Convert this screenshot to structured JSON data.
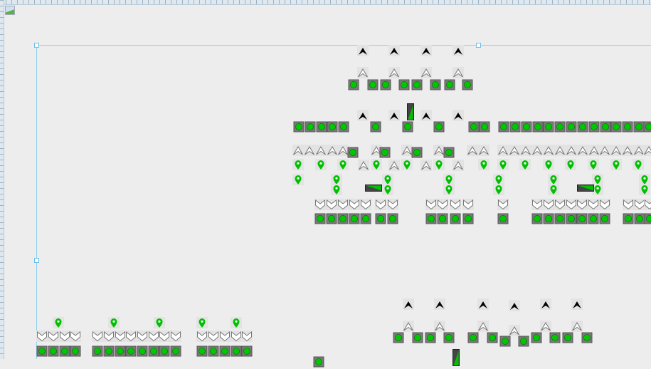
{
  "canvas": {
    "background": "#ededed",
    "selection_color": "#8fd0ef"
  },
  "icon_types": {
    "chevron-up-black": {
      "fill": "#000000"
    },
    "chevron-up-white": {
      "fill": "#ffffff",
      "stroke": "#777777"
    },
    "chevron-down-white": {
      "fill": "#ffffff",
      "stroke": "#777777"
    },
    "led-green": {
      "fill": "#00c800",
      "frame": "#7a7a7a"
    },
    "map-pin": {
      "fill": "#00c000"
    },
    "level-bar-vertical": {
      "fill": "#00c000",
      "frame": "#444444"
    },
    "level-bar-horizontal": {
      "fill": "#00c000",
      "frame": "#444444"
    }
  }
}
